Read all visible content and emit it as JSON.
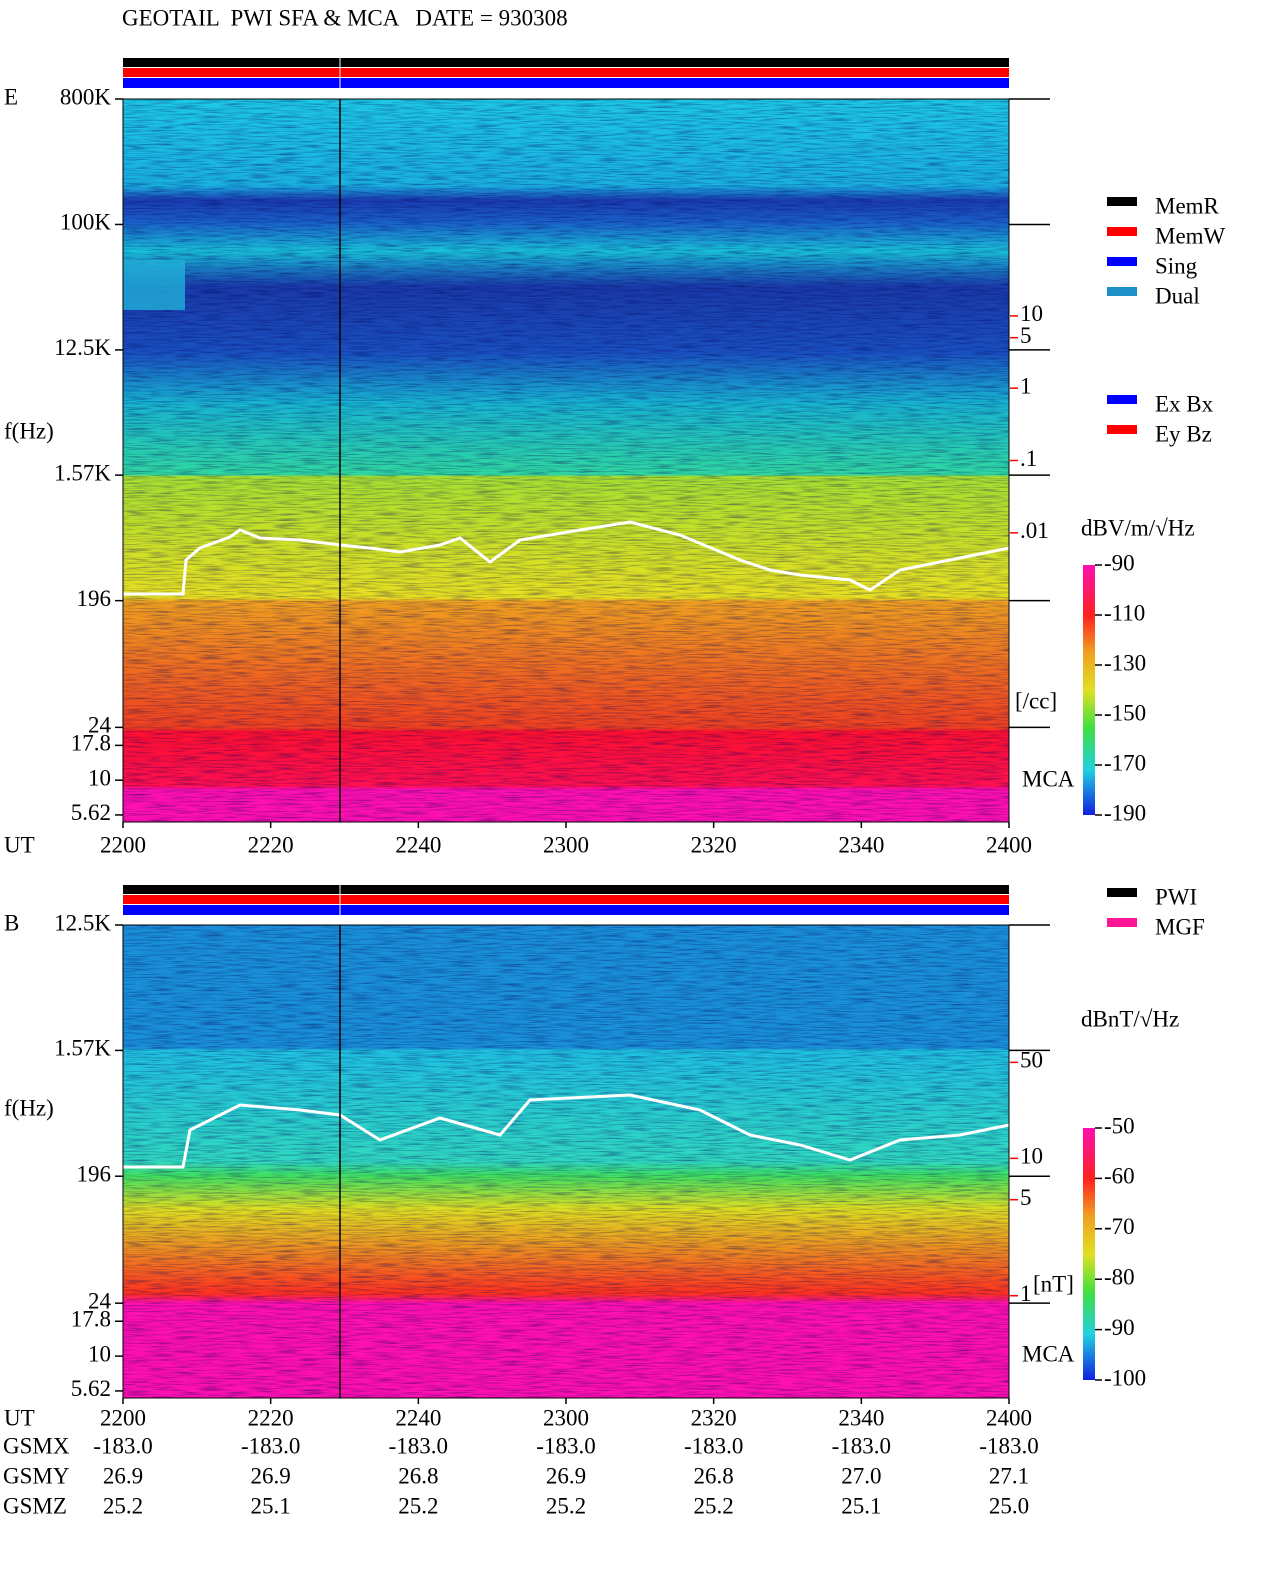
{
  "header": {
    "title": "GEOTAIL  PWI SFA & MCA   DATE = 930308"
  },
  "chart_data": [
    {
      "type": "spectrogram",
      "panel_label": "E",
      "y_label": "f(Hz)",
      "x_label": "UT",
      "mca_label": "MCA",
      "log_y": true,
      "ylim": [
        5,
        800000
      ],
      "yticks": [
        {
          "value": 800000,
          "label": "800K"
        },
        {
          "value": 100000,
          "label": "100K"
        },
        {
          "value": 12500,
          "label": "12.5K"
        },
        {
          "value": 1570,
          "label": "1.57K"
        },
        196,
        24,
        17.8,
        10,
        5.62
      ],
      "categories": [
        "2200",
        "2220",
        "2240",
        "2300",
        "2320",
        "2340",
        "2400"
      ],
      "y2lim": [
        1e-06,
        10000
      ],
      "y2ticks": [
        10,
        5,
        1,
        {
          "value": 0.1,
          "label": ".1"
        },
        {
          "value": 0.01,
          "label": ".01"
        }
      ],
      "y2_label": "[/cc]",
      "y2_color": "#ff0000",
      "colorbar": {
        "label": "dBV/m/√Hz",
        "lim": [
          -190,
          -90
        ],
        "ticks": [
          -90,
          -110,
          -130,
          -150,
          -170,
          -190
        ]
      },
      "legends": [
        [
          {
            "name": "MemR",
            "color": "#000000"
          },
          {
            "name": "MemW",
            "color": "#ff0000"
          },
          {
            "name": "Sing",
            "color": "#0000ff"
          },
          {
            "name": "Dual",
            "color": "#1e90c8"
          }
        ],
        [
          {
            "name": "Ex Bx",
            "color": "#0000ff"
          },
          {
            "name": "Ey Bz",
            "color": "#ff0000"
          }
        ]
      ]
    },
    {
      "type": "spectrogram",
      "panel_label": "B",
      "y_label": "f(Hz)",
      "x_label": "UT",
      "mca_label": "MCA",
      "log_y": true,
      "ylim": [
        5,
        12500
      ],
      "yticks": [
        {
          "value": 12500,
          "label": "12.5K"
        },
        {
          "value": 1570,
          "label": "1.57K"
        },
        196,
        24,
        17.8,
        10,
        5.62
      ],
      "categories": [
        "2200",
        "2220",
        "2240",
        "2300",
        "2320",
        "2340",
        "2400"
      ],
      "y2lim": [
        0.18,
        500
      ],
      "y2ticks": [
        50,
        10,
        5,
        1
      ],
      "y2_label": "[nT]",
      "y2_color": "#ff0000",
      "colorbar": {
        "label": "dBnT/√Hz",
        "lim": [
          -100,
          -50
        ],
        "ticks": [
          -50,
          -60,
          -70,
          -80,
          -90,
          -100
        ]
      },
      "legends": [
        [
          {
            "name": "PWI",
            "color": "#000000"
          },
          {
            "name": "MGF",
            "color": "#ff1493"
          }
        ]
      ]
    }
  ],
  "orbit": {
    "rows": [
      {
        "label": "GSMX",
        "values": [
          "-183.0",
          "-183.0",
          "-183.0",
          "-183.0",
          "-183.0",
          "-183.0",
          "-183.0"
        ]
      },
      {
        "label": "GSMY",
        "values": [
          "26.9",
          "26.9",
          "26.8",
          "26.9",
          "26.8",
          "27.0",
          "27.1"
        ]
      },
      {
        "label": "GSMZ",
        "values": [
          "25.2",
          "25.1",
          "25.2",
          "25.2",
          "25.2",
          "25.1",
          "25.0"
        ]
      }
    ]
  }
}
